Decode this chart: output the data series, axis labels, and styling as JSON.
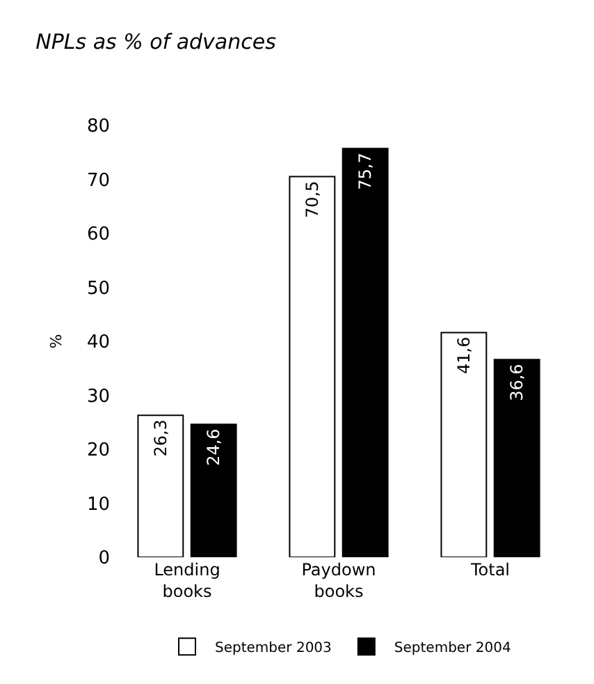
{
  "chart_data": {
    "type": "bar",
    "title": "NPLs as % of advances",
    "ylabel": "%",
    "categories": [
      "Lending books",
      "Paydown books",
      "Total"
    ],
    "series": [
      {
        "name": "September 2003",
        "color": "#ffffff",
        "values": [
          26.3,
          70.5,
          41.6
        ],
        "value_labels": [
          "26,3",
          "70,5",
          "41,6"
        ]
      },
      {
        "name": "September 2004",
        "color": "#000000",
        "values": [
          24.6,
          75.7,
          36.6
        ],
        "value_labels": [
          "24,6",
          "75,7",
          "36,6"
        ]
      }
    ],
    "ylim": [
      0,
      80
    ],
    "yticks": [
      0,
      10,
      20,
      30,
      40,
      50,
      60,
      70,
      80
    ],
    "legend": "bottom"
  }
}
